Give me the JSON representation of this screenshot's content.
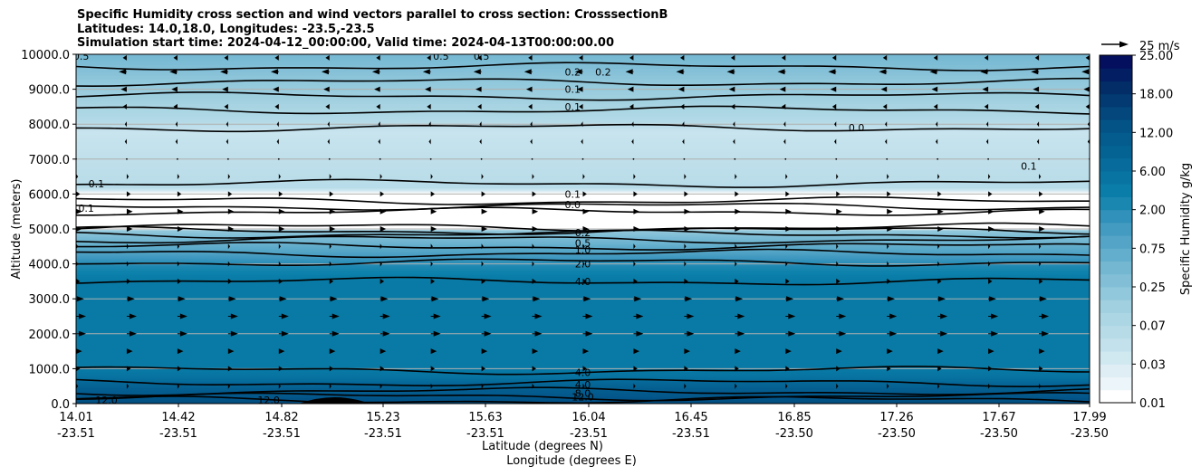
{
  "title": {
    "line1": "Specific Humidity cross section and wind vectors parallel to cross section: CrosssectionB",
    "line2": "Latitudes: 14.0,18.0, Longitudes: -23.5,-23.5",
    "line3": "Simulation start time: 2024-04-12_00:00:00, Valid time: 2024-04-13T00:00:00.00"
  },
  "chart_data": {
    "type": "heatmap",
    "subtype": "filled contour cross-section with contour lines and wind quiver",
    "title": "Specific Humidity cross section and wind vectors parallel to cross section: CrosssectionB",
    "xlabel_lat": "Latitude (degrees N)",
    "xlabel_lon": "Longitude (degrees E)",
    "ylabel": "Altitude (meters)",
    "ylim": [
      0,
      10000
    ],
    "yticks": [
      "0.0",
      "1000.0",
      "2000.0",
      "3000.0",
      "4000.0",
      "5000.0",
      "6000.0",
      "7000.0",
      "8000.0",
      "9000.0",
      "10000.0"
    ],
    "xticks": [
      {
        "lat": "14.01",
        "lon": "-23.51"
      },
      {
        "lat": "14.42",
        "lon": "-23.51"
      },
      {
        "lat": "14.82",
        "lon": "-23.51"
      },
      {
        "lat": "15.23",
        "lon": "-23.51"
      },
      {
        "lat": "15.63",
        "lon": "-23.51"
      },
      {
        "lat": "16.04",
        "lon": "-23.51"
      },
      {
        "lat": "16.45",
        "lon": "-23.51"
      },
      {
        "lat": "16.85",
        "lon": "-23.50"
      },
      {
        "lat": "17.26",
        "lon": "-23.50"
      },
      {
        "lat": "17.67",
        "lon": "-23.50"
      },
      {
        "lat": "17.99",
        "lon": "-23.50"
      }
    ],
    "grid": "horizontal",
    "colorbar": {
      "label": "Specific Humidity g/kg",
      "ticks": [
        "0.01",
        "0.03",
        "0.07",
        "0.25",
        "0.75",
        "2.00",
        "6.00",
        "12.00",
        "18.00",
        "25.00"
      ],
      "levels": 27,
      "cmap_low": "#ffffff",
      "cmap_high": "#04085c"
    },
    "quiver_key": {
      "label": "25 m/s",
      "value": 25
    },
    "profile": [
      {
        "alt": 0,
        "q": 14.0
      },
      {
        "alt": 400,
        "q": 10.0
      },
      {
        "alt": 800,
        "q": 5.0
      },
      {
        "alt": 1000,
        "q": 4.0
      },
      {
        "alt": 3500,
        "q": 4.0
      },
      {
        "alt": 4000,
        "q": 2.0
      },
      {
        "alt": 4300,
        "q": 1.0
      },
      {
        "alt": 4600,
        "q": 0.5
      },
      {
        "alt": 4950,
        "q": 0.2
      },
      {
        "alt": 5000,
        "q": 0.0
      },
      {
        "alt": 6000,
        "q": 0.0
      },
      {
        "alt": 6200,
        "q": 0.06
      },
      {
        "alt": 7000,
        "q": 0.05
      },
      {
        "alt": 7800,
        "q": 0.04
      },
      {
        "alt": 8500,
        "q": 0.1
      },
      {
        "alt": 9200,
        "q": 0.2
      },
      {
        "alt": 10000,
        "q": 0.4
      }
    ],
    "contour_labels": [
      {
        "text": "0.5",
        "x": 0.005,
        "alt": 9950
      },
      {
        "text": "0.5",
        "x": 0.36,
        "alt": 9950
      },
      {
        "text": "0.5",
        "x": 0.4,
        "alt": 9950
      },
      {
        "text": "0.2",
        "x": 0.49,
        "alt": 9500
      },
      {
        "text": "0.2",
        "x": 0.52,
        "alt": 9500
      },
      {
        "text": "0.1",
        "x": 0.49,
        "alt": 9000
      },
      {
        "text": "0.1",
        "x": 0.49,
        "alt": 8500
      },
      {
        "text": "0.0",
        "x": 0.77,
        "alt": 7900
      },
      {
        "text": "0.1",
        "x": 0.94,
        "alt": 6800
      },
      {
        "text": "0.1",
        "x": 0.49,
        "alt": 6000
      },
      {
        "text": "0.0",
        "x": 0.49,
        "alt": 5700
      },
      {
        "text": "0.1",
        "x": 0.02,
        "alt": 6300
      },
      {
        "text": "0.1",
        "x": 0.01,
        "alt": 5600
      },
      {
        "text": "0.2",
        "x": 0.5,
        "alt": 4900
      },
      {
        "text": "0.5",
        "x": 0.5,
        "alt": 4600
      },
      {
        "text": "1.0",
        "x": 0.5,
        "alt": 4400
      },
      {
        "text": "2.0",
        "x": 0.5,
        "alt": 4000
      },
      {
        "text": "4.0",
        "x": 0.5,
        "alt": 3500
      },
      {
        "text": "4.0",
        "x": 0.5,
        "alt": 900
      },
      {
        "text": "4.0",
        "x": 0.5,
        "alt": 550
      },
      {
        "text": "8.0",
        "x": 0.5,
        "alt": 300
      },
      {
        "text": "12.0",
        "x": 0.5,
        "alt": 200
      },
      {
        "text": "12.0",
        "x": 0.03,
        "alt": 100
      },
      {
        "text": "12.0",
        "x": 0.19,
        "alt": 100
      }
    ],
    "wind_rows": [
      {
        "alt": 9900,
        "u": -2
      },
      {
        "alt": 9500,
        "u": -4
      },
      {
        "alt": 9000,
        "u": -3
      },
      {
        "alt": 8500,
        "u": -2
      },
      {
        "alt": 8000,
        "u": -1
      },
      {
        "alt": 7500,
        "u": -1
      },
      {
        "alt": 7000,
        "u": -0.5
      },
      {
        "alt": 6500,
        "u": 1
      },
      {
        "alt": 6000,
        "u": 2
      },
      {
        "alt": 5500,
        "u": 3
      },
      {
        "alt": 5000,
        "u": 3
      },
      {
        "alt": 4500,
        "u": 1
      },
      {
        "alt": 4000,
        "u": 1
      },
      {
        "alt": 3500,
        "u": 2
      },
      {
        "alt": 3000,
        "u": 4
      },
      {
        "alt": 2500,
        "u": 5
      },
      {
        "alt": 2000,
        "u": 5
      },
      {
        "alt": 1500,
        "u": 3
      },
      {
        "alt": 1000,
        "u": 2
      },
      {
        "alt": 500,
        "u": 1
      }
    ]
  }
}
